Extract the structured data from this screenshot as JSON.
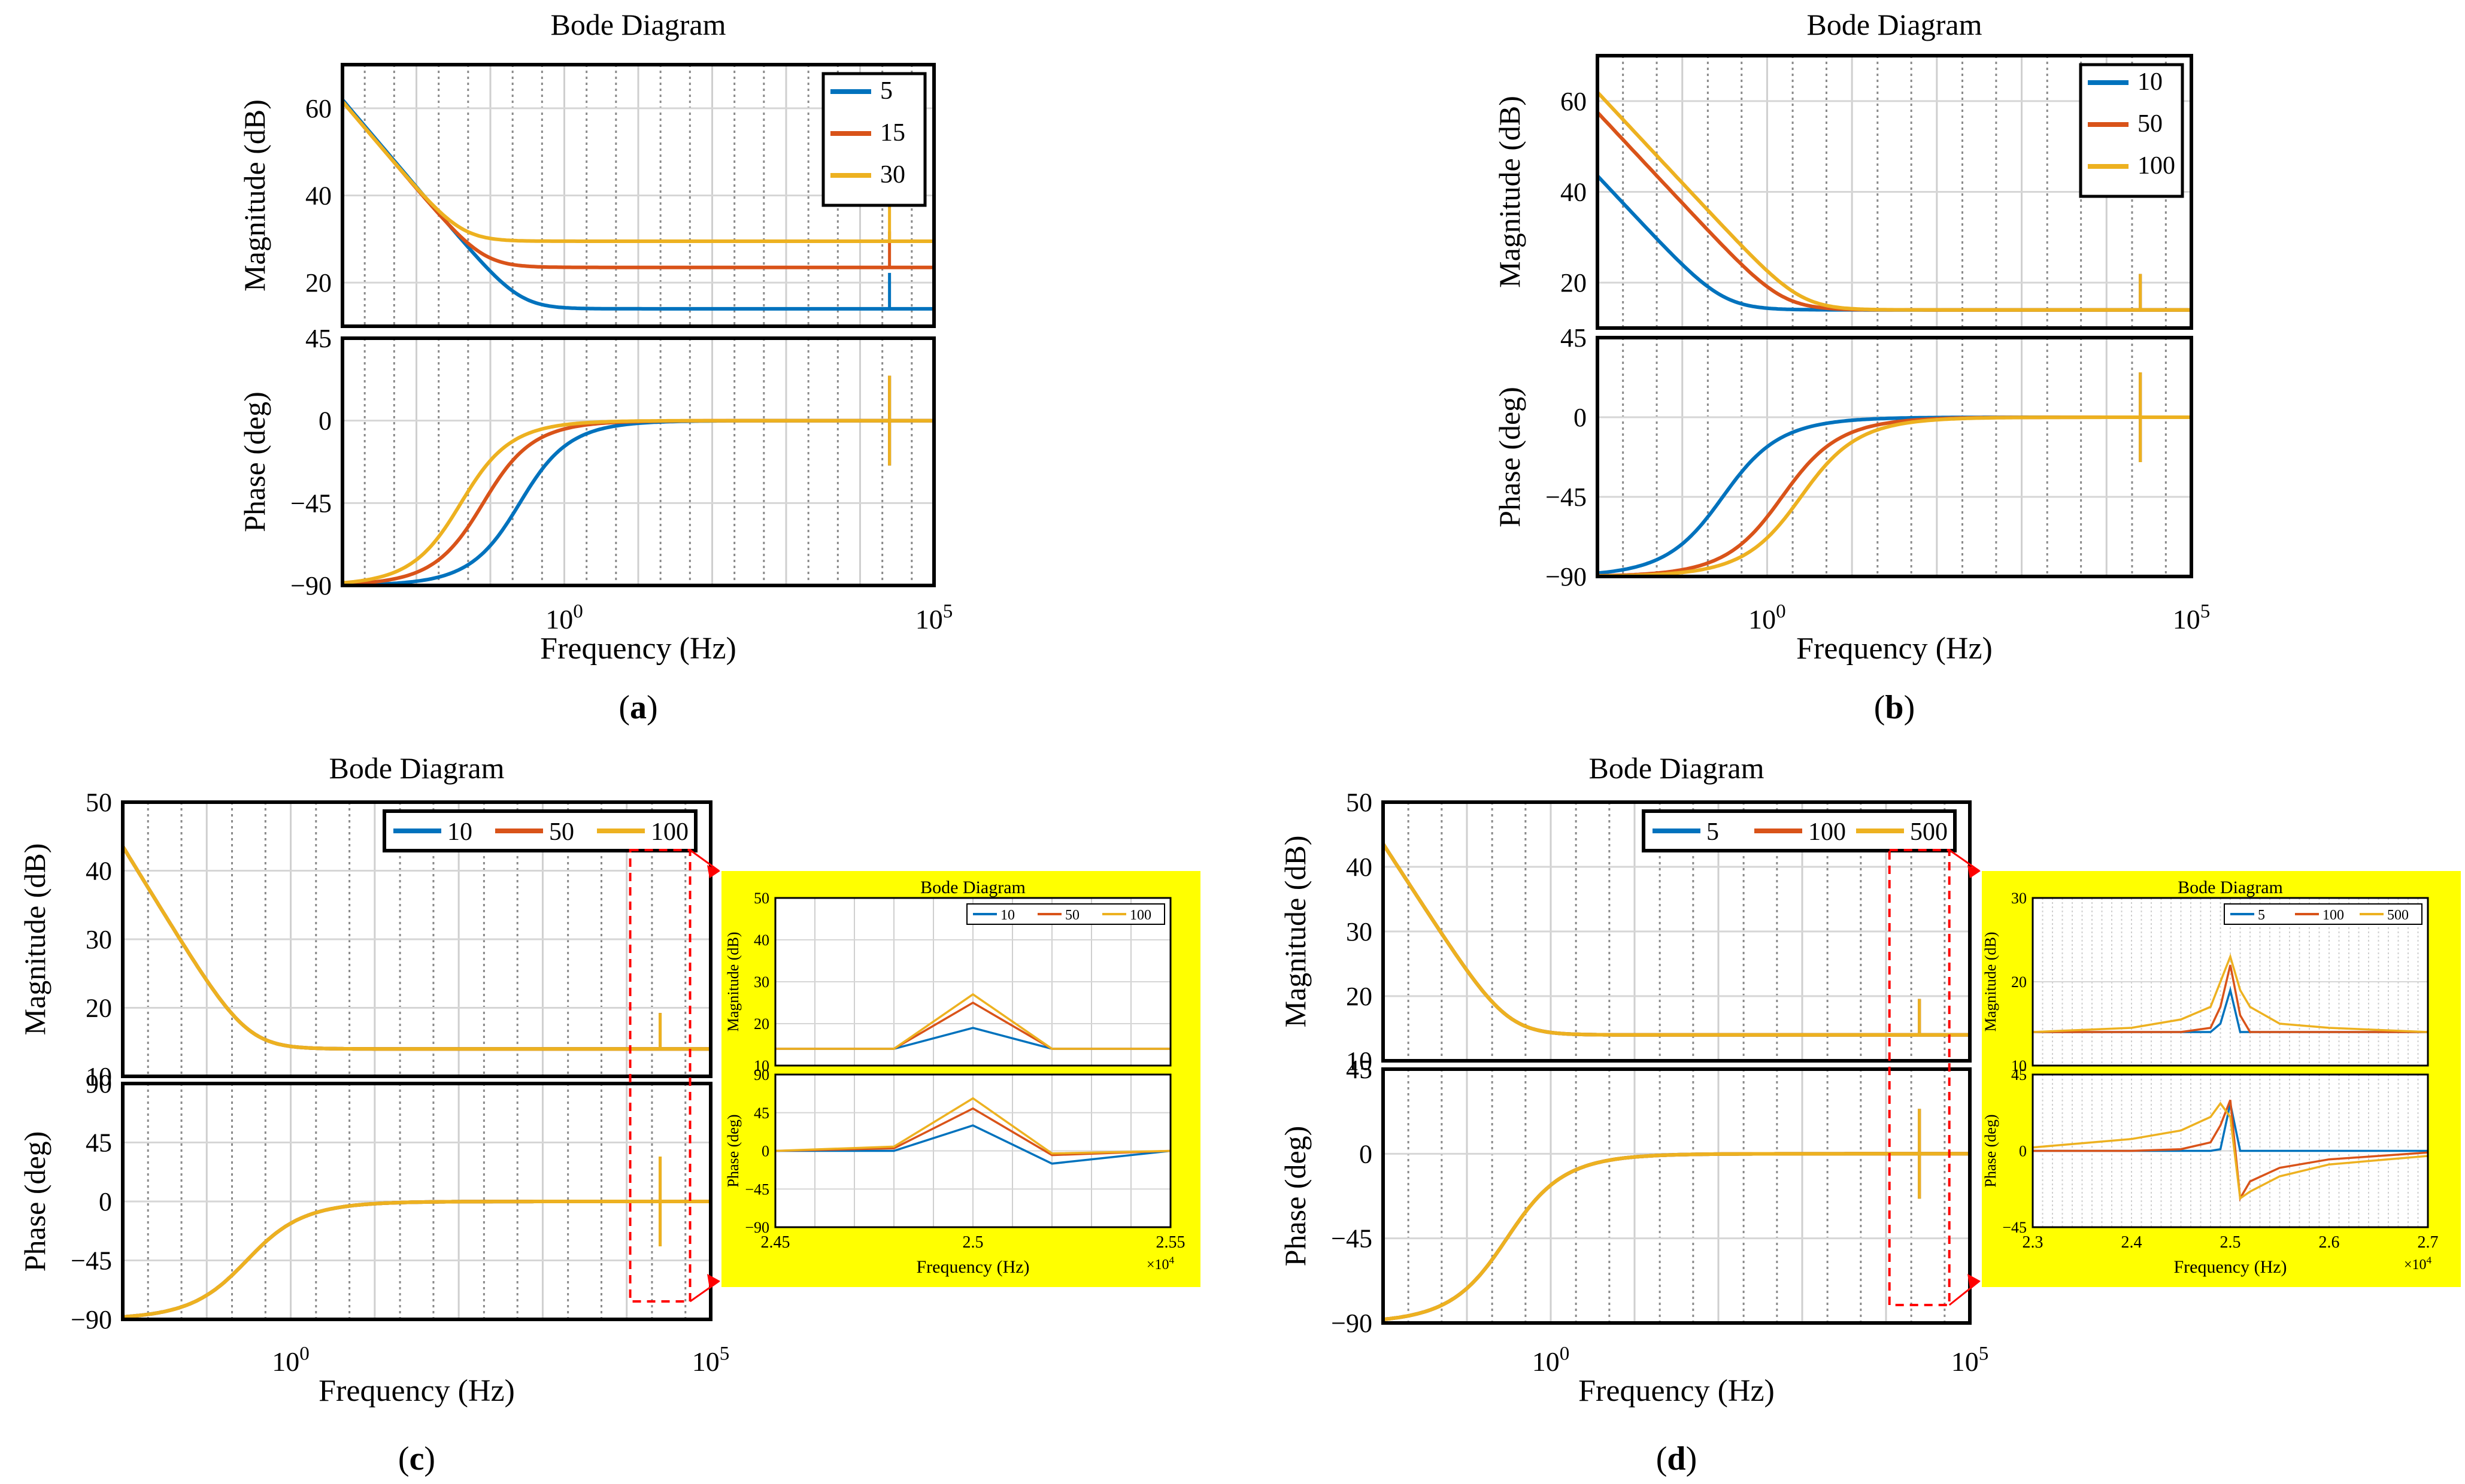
{
  "figure": {
    "colors": {
      "blue": "#0072BD",
      "orange": "#D95319",
      "yellow": "#EDB120",
      "inset_bg": "#FFFF00",
      "callout": "#FF0000"
    }
  },
  "chart_data": [
    {
      "id": "a",
      "type": "line",
      "panel_label": "(a)",
      "title": "Bode Diagram",
      "xlabel": "Frequency  (Hz)",
      "ylabel_mag": "Magnitude (dB)",
      "ylabel_phase": "Phase (deg)",
      "x_scale": "log",
      "xlim": [
        0.001,
        100000
      ],
      "x_ticks": [
        "10^0",
        "10^5"
      ],
      "mag_ylim": [
        10,
        70
      ],
      "mag_ticks": [
        20,
        40,
        60
      ],
      "phase_ylim": [
        -90,
        45
      ],
      "phase_ticks": [
        45,
        0,
        -45,
        -90
      ],
      "legend": {
        "position": "top-right",
        "entries": [
          "5",
          "15",
          "30"
        ]
      },
      "series": [
        {
          "name": "5",
          "color": "blue",
          "mag_db": {
            "low_freq": "integrator -20 dB/dec",
            "high_freq": 14,
            "corner_hz": 0.25
          },
          "phase_deg": {
            "low": -90,
            "high": 0,
            "corner_hz": 0.25
          },
          "resonance_hz": 25000
        },
        {
          "name": "15",
          "color": "orange",
          "mag_db": {
            "low_freq": "integrator -20 dB/dec",
            "high_freq": 23.5,
            "corner_hz": 0.08
          },
          "phase_deg": {
            "low": -90,
            "high": 0,
            "corner_hz": 0.08
          },
          "resonance_hz": 25000
        },
        {
          "name": "30",
          "color": "yellow",
          "mag_db": {
            "low_freq": "integrator -20 dB/dec",
            "high_freq": 29.5,
            "corner_hz": 0.04
          },
          "phase_deg": {
            "low": -90,
            "high": 0,
            "corner_hz": 0.04
          },
          "resonance_hz": 25000
        }
      ]
    },
    {
      "id": "b",
      "type": "line",
      "panel_label": "(b)",
      "title": "Bode Diagram",
      "xlabel": "Frequency  (Hz)",
      "ylabel_mag": "Magnitude (dB)",
      "ylabel_phase": "Phase (deg)",
      "x_scale": "log",
      "xlim": [
        0.01,
        100000
      ],
      "x_ticks": [
        "10^0",
        "10^5"
      ],
      "mag_ylim": [
        10,
        70
      ],
      "mag_ticks": [
        20,
        40,
        60
      ],
      "phase_ylim": [
        -90,
        45
      ],
      "phase_ticks": [
        45,
        0,
        -45,
        -90
      ],
      "legend": {
        "position": "top-right",
        "entries": [
          "10",
          "50",
          "100"
        ]
      },
      "series": [
        {
          "name": "10",
          "color": "blue",
          "mag_db": {
            "low_freq": "integrator -20 dB/dec",
            "high_freq": 14,
            "corner_hz": 0.3
          },
          "phase_deg": {
            "low": -90,
            "high": 0,
            "corner_hz": 0.3
          },
          "resonance_hz": 25000
        },
        {
          "name": "50",
          "color": "orange",
          "mag_db": {
            "low_freq": "integrator -20 dB/dec",
            "high_freq": 14,
            "corner_hz": 1.5
          },
          "phase_deg": {
            "low": -90,
            "high": 0,
            "corner_hz": 1.5
          },
          "resonance_hz": 25000
        },
        {
          "name": "100",
          "color": "yellow",
          "mag_db": {
            "low_freq": "integrator -20 dB/dec",
            "high_freq": 14,
            "corner_hz": 2.5
          },
          "phase_deg": {
            "low": -90,
            "high": 0,
            "corner_hz": 2.5
          },
          "resonance_hz": 25000
        }
      ]
    },
    {
      "id": "c",
      "type": "line",
      "panel_label": "(c)",
      "title": "Bode Diagram",
      "xlabel": "Frequency  (Hz)",
      "ylabel_mag": "Magnitude (dB)",
      "ylabel_phase": "Phase (deg)",
      "x_scale": "log",
      "xlim": [
        0.01,
        100000
      ],
      "x_ticks": [
        "10^0",
        "10^5"
      ],
      "mag_ylim": [
        10,
        50
      ],
      "mag_ticks": [
        50,
        40,
        30,
        20,
        10
      ],
      "phase_ylim": [
        -90,
        90
      ],
      "phase_ticks": [
        90,
        45,
        0,
        -45,
        -90
      ],
      "legend": {
        "position": "top-right",
        "entries": [
          "10",
          "50",
          "100"
        ]
      },
      "series": [
        {
          "name": "10",
          "color": "blue",
          "mag_db": {
            "low_freq": "integrator -20 dB/dec",
            "high_freq": 14,
            "corner_hz": 0.3
          },
          "phase_deg": {
            "low": -90,
            "high": 0,
            "corner_hz": 0.3
          },
          "resonance_hz": 25000
        },
        {
          "name": "50",
          "color": "orange",
          "mag_db": {
            "low_freq": "integrator -20 dB/dec",
            "high_freq": 14,
            "corner_hz": 0.3
          },
          "phase_deg": {
            "low": -90,
            "high": 0,
            "corner_hz": 0.3
          },
          "resonance_hz": 25000
        },
        {
          "name": "100",
          "color": "yellow",
          "mag_db": {
            "low_freq": "integrator -20 dB/dec",
            "high_freq": 14,
            "corner_hz": 0.3
          },
          "phase_deg": {
            "low": -90,
            "high": 0,
            "corner_hz": 0.3
          },
          "resonance_hz": 25000
        }
      ],
      "inset": {
        "title": "Bode Diagram",
        "xlabel": "Frequency  (Hz)",
        "ylabel_mag": "Magnitude (dB)",
        "ylabel_phase": "Phase (deg)",
        "x_multiplier": "×10^4",
        "xlim": [
          2.45,
          2.55
        ],
        "x_ticks": [
          "2.45",
          "2.5",
          "2.55"
        ],
        "mag_ylim": [
          10,
          50
        ],
        "mag_ticks": [
          50,
          40,
          30,
          20,
          10
        ],
        "phase_ylim": [
          -90,
          90
        ],
        "phase_ticks": [
          90,
          45,
          0,
          -45,
          -90
        ],
        "legend": {
          "position": "top-right",
          "entries": [
            "10",
            "50",
            "100"
          ]
        },
        "x_points": [
          2.45,
          2.48,
          2.5,
          2.52,
          2.55
        ],
        "series": [
          {
            "name": "10",
            "color": "blue",
            "mag": [
              14,
              14,
              19,
              14,
              14
            ],
            "phase": [
              0,
              0,
              30,
              -15,
              0
            ],
            "phase_jump": -30
          },
          {
            "name": "50",
            "color": "orange",
            "mag": [
              14,
              14,
              25,
              14,
              14
            ],
            "phase": [
              0,
              3,
              50,
              -5,
              0
            ],
            "phase_jump": -60
          },
          {
            "name": "100",
            "color": "yellow",
            "mag": [
              14,
              14,
              27,
              14,
              14
            ],
            "phase": [
              0,
              5,
              62,
              -3,
              0
            ],
            "phase_jump": -68
          }
        ]
      }
    },
    {
      "id": "d",
      "type": "line",
      "panel_label": "(d)",
      "title": "Bode Diagram",
      "xlabel": "Frequency  (Hz)",
      "ylabel_mag": "Magnitude (dB)",
      "ylabel_phase": "Phase (deg)",
      "x_scale": "log",
      "xlim": [
        0.01,
        100000
      ],
      "x_ticks": [
        "10^0",
        "10^5"
      ],
      "mag_ylim": [
        10,
        50
      ],
      "mag_ticks": [
        50,
        40,
        30,
        20,
        10
      ],
      "phase_ylim": [
        -90,
        45
      ],
      "phase_ticks": [
        45,
        0,
        -45,
        -90
      ],
      "legend": {
        "position": "top-right",
        "entries": [
          "5",
          "100",
          "500"
        ]
      },
      "series": [
        {
          "name": "5",
          "color": "blue",
          "mag_db": {
            "low_freq": "integrator -20 dB/dec",
            "high_freq": 14,
            "corner_hz": 0.3
          },
          "phase_deg": {
            "low": -90,
            "high": 0,
            "corner_hz": 0.3
          },
          "resonance_hz": 25000
        },
        {
          "name": "100",
          "color": "orange",
          "mag_db": {
            "low_freq": "integrator -20 dB/dec",
            "high_freq": 14,
            "corner_hz": 0.3
          },
          "phase_deg": {
            "low": -90,
            "high": 0,
            "corner_hz": 0.3
          },
          "resonance_hz": 25000
        },
        {
          "name": "500",
          "color": "yellow",
          "mag_db": {
            "low_freq": "integrator -20 dB/dec",
            "high_freq": 14,
            "corner_hz": 0.3
          },
          "phase_deg": {
            "low": -90,
            "high": 0,
            "corner_hz": 0.3
          },
          "resonance_hz": 25000
        }
      ],
      "inset": {
        "title": "Bode Diagram",
        "xlabel": "Frequency  (Hz)",
        "ylabel_mag": "Magnitude (dB)",
        "ylabel_phase": "Phase (deg)",
        "x_multiplier": "×10^4",
        "xlim": [
          2.3,
          2.7
        ],
        "x_ticks": [
          "2.3",
          "2.4",
          "2.5",
          "2.6",
          "2.7"
        ],
        "mag_ylim": [
          10,
          30
        ],
        "mag_ticks": [
          30,
          20,
          10
        ],
        "phase_ylim": [
          -45,
          45
        ],
        "phase_ticks": [
          45,
          0,
          -45
        ],
        "legend": {
          "position": "top-right",
          "entries": [
            "5",
            "100",
            "500"
          ]
        },
        "x_points": [
          2.3,
          2.4,
          2.45,
          2.48,
          2.49,
          2.5,
          2.51,
          2.52,
          2.55,
          2.6,
          2.7
        ],
        "series": [
          {
            "name": "5",
            "color": "blue",
            "mag": [
              14,
              14,
              14,
              14,
              15,
              19,
              14,
              14,
              14,
              14,
              14
            ],
            "phase": [
              0,
              0,
              0,
              0,
              1,
              28,
              0,
              0,
              0,
              0,
              0
            ],
            "phase_jump": -25
          },
          {
            "name": "100",
            "color": "orange",
            "mag": [
              14,
              14,
              14,
              14.5,
              17,
              22,
              16,
              14,
              14,
              14,
              14
            ],
            "phase": [
              0,
              0,
              1,
              5,
              15,
              30,
              -28,
              -18,
              -10,
              -5,
              -1
            ]
          },
          {
            "name": "500",
            "color": "yellow",
            "mag": [
              14,
              14.5,
              15.5,
              17,
              20,
              23,
              19,
              17,
              15,
              14.5,
              14
            ],
            "phase": [
              2,
              7,
              12,
              20,
              28,
              20,
              -28,
              -24,
              -15,
              -8,
              -3
            ]
          }
        ]
      }
    }
  ]
}
